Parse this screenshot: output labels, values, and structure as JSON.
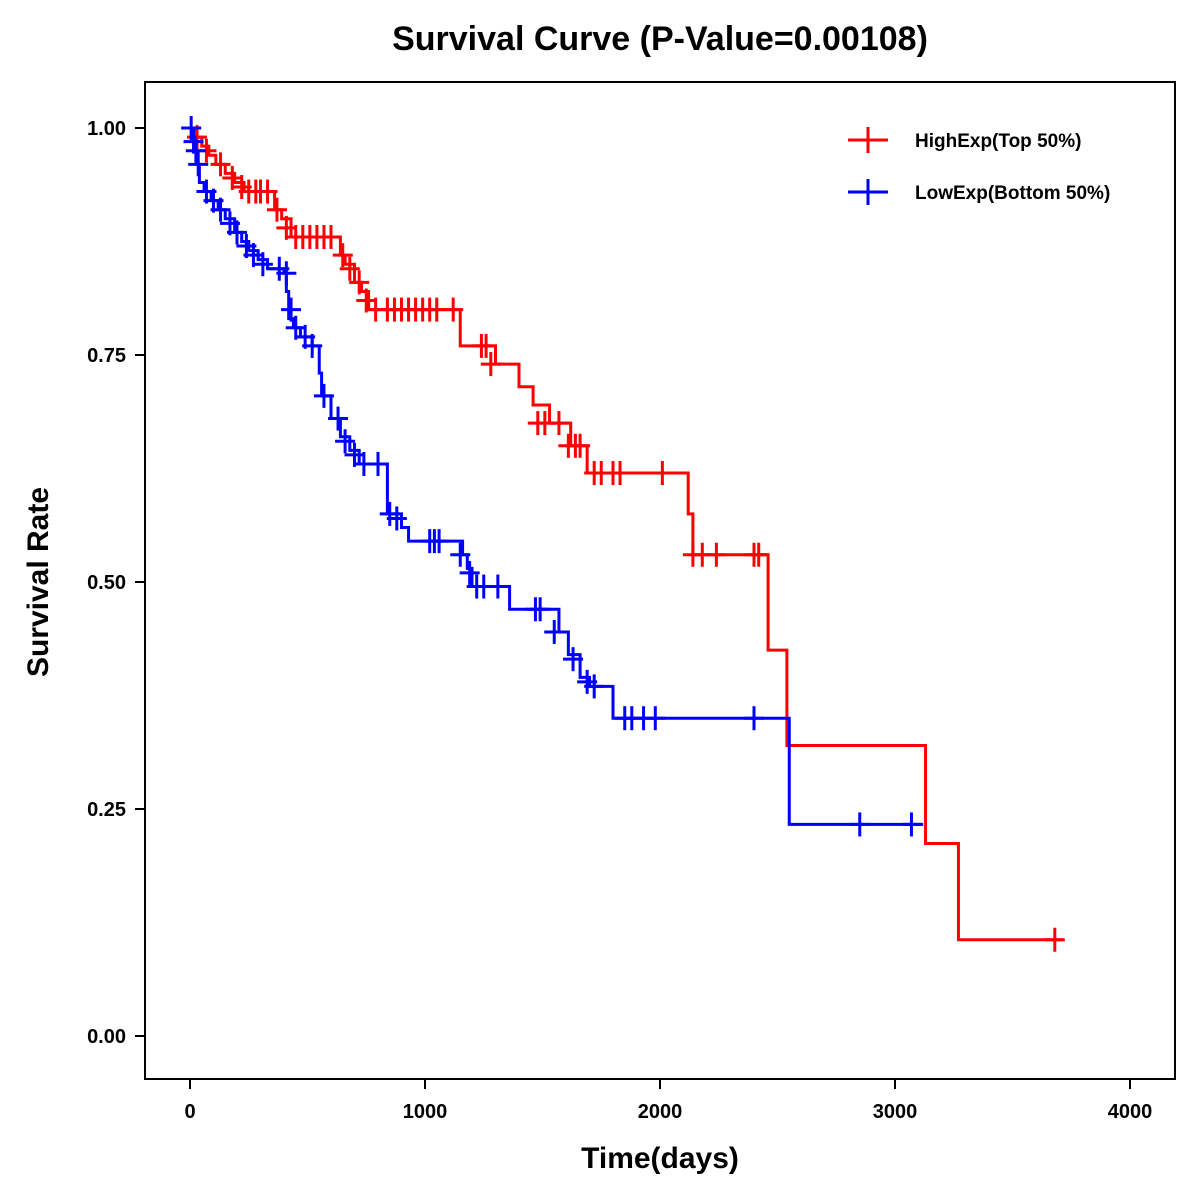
{
  "chart_data": {
    "type": "line",
    "title": "Survival Curve (P-Value=0.00108)",
    "xlabel": "Time(days)",
    "ylabel": "Survival Rate",
    "xlim": [
      -200,
      4200
    ],
    "ylim": [
      -0.05,
      1.05
    ],
    "xticks": [
      0,
      1000,
      2000,
      3000,
      4000
    ],
    "xtick_labels": [
      "0",
      "1000",
      "2000",
      "3000",
      "4000"
    ],
    "yticks": [
      0,
      0.25,
      0.5,
      0.75,
      1.0
    ],
    "ytick_labels": [
      "0.00",
      "0.25",
      "0.50",
      "0.75",
      "1.00"
    ],
    "legend_position": "top-right",
    "series": [
      {
        "name": "HighExp(Top 50%)",
        "color": "#ff0000",
        "steps": [
          [
            0,
            1.0
          ],
          [
            20,
            0.99
          ],
          [
            50,
            0.98
          ],
          [
            80,
            0.97
          ],
          [
            110,
            0.96
          ],
          [
            150,
            0.95
          ],
          [
            190,
            0.94
          ],
          [
            230,
            0.93
          ],
          [
            340,
            0.93
          ],
          [
            360,
            0.91
          ],
          [
            390,
            0.9
          ],
          [
            430,
            0.88
          ],
          [
            620,
            0.88
          ],
          [
            640,
            0.86
          ],
          [
            660,
            0.85
          ],
          [
            700,
            0.83
          ],
          [
            730,
            0.82
          ],
          [
            760,
            0.8
          ],
          [
            1140,
            0.8
          ],
          [
            1150,
            0.76
          ],
          [
            1290,
            0.76
          ],
          [
            1300,
            0.74
          ],
          [
            1380,
            0.74
          ],
          [
            1400,
            0.715
          ],
          [
            1440,
            0.715
          ],
          [
            1460,
            0.695
          ],
          [
            1520,
            0.695
          ],
          [
            1530,
            0.675
          ],
          [
            1600,
            0.675
          ],
          [
            1620,
            0.65
          ],
          [
            1680,
            0.65
          ],
          [
            1690,
            0.62
          ],
          [
            2110,
            0.62
          ],
          [
            2120,
            0.575
          ],
          [
            2140,
            0.53
          ],
          [
            2450,
            0.53
          ],
          [
            2460,
            0.425
          ],
          [
            2530,
            0.425
          ],
          [
            2540,
            0.32
          ],
          [
            3120,
            0.32
          ],
          [
            3130,
            0.212
          ],
          [
            3260,
            0.212
          ],
          [
            3270,
            0.106
          ],
          [
            3710,
            0.106
          ]
        ],
        "censors": [
          [
            30,
            0.99
          ],
          [
            70,
            0.975
          ],
          [
            130,
            0.96
          ],
          [
            180,
            0.945
          ],
          [
            220,
            0.935
          ],
          [
            250,
            0.93
          ],
          [
            280,
            0.93
          ],
          [
            300,
            0.93
          ],
          [
            330,
            0.93
          ],
          [
            370,
            0.91
          ],
          [
            410,
            0.89
          ],
          [
            450,
            0.88
          ],
          [
            480,
            0.88
          ],
          [
            510,
            0.88
          ],
          [
            540,
            0.88
          ],
          [
            570,
            0.88
          ],
          [
            600,
            0.88
          ],
          [
            650,
            0.86
          ],
          [
            680,
            0.845
          ],
          [
            720,
            0.83
          ],
          [
            750,
            0.81
          ],
          [
            790,
            0.8
          ],
          [
            840,
            0.8
          ],
          [
            870,
            0.8
          ],
          [
            900,
            0.8
          ],
          [
            930,
            0.8
          ],
          [
            960,
            0.8
          ],
          [
            990,
            0.8
          ],
          [
            1020,
            0.8
          ],
          [
            1050,
            0.8
          ],
          [
            1120,
            0.8
          ],
          [
            1240,
            0.76
          ],
          [
            1260,
            0.76
          ],
          [
            1280,
            0.74
          ],
          [
            1480,
            0.675
          ],
          [
            1510,
            0.675
          ],
          [
            1570,
            0.675
          ],
          [
            1610,
            0.65
          ],
          [
            1640,
            0.65
          ],
          [
            1660,
            0.65
          ],
          [
            1720,
            0.62
          ],
          [
            1750,
            0.62
          ],
          [
            1800,
            0.62
          ],
          [
            1830,
            0.62
          ],
          [
            2010,
            0.62
          ],
          [
            2140,
            0.53
          ],
          [
            2180,
            0.53
          ],
          [
            2240,
            0.53
          ],
          [
            2400,
            0.53
          ],
          [
            2420,
            0.53
          ],
          [
            3680,
            0.106
          ]
        ]
      },
      {
        "name": "LowExp(Bottom 50%)",
        "color": "#0000ff",
        "steps": [
          [
            0,
            1.0
          ],
          [
            10,
            0.99
          ],
          [
            20,
            0.975
          ],
          [
            30,
            0.96
          ],
          [
            40,
            0.94
          ],
          [
            60,
            0.93
          ],
          [
            90,
            0.92
          ],
          [
            120,
            0.91
          ],
          [
            150,
            0.9
          ],
          [
            190,
            0.885
          ],
          [
            220,
            0.875
          ],
          [
            250,
            0.865
          ],
          [
            290,
            0.855
          ],
          [
            330,
            0.845
          ],
          [
            400,
            0.84
          ],
          [
            410,
            0.82
          ],
          [
            420,
            0.79
          ],
          [
            440,
            0.78
          ],
          [
            470,
            0.77
          ],
          [
            520,
            0.76
          ],
          [
            550,
            0.73
          ],
          [
            560,
            0.705
          ],
          [
            600,
            0.68
          ],
          [
            640,
            0.66
          ],
          [
            680,
            0.645
          ],
          [
            720,
            0.63
          ],
          [
            830,
            0.63
          ],
          [
            840,
            0.575
          ],
          [
            900,
            0.56
          ],
          [
            930,
            0.545
          ],
          [
            1140,
            0.545
          ],
          [
            1160,
            0.53
          ],
          [
            1180,
            0.515
          ],
          [
            1200,
            0.495
          ],
          [
            1340,
            0.495
          ],
          [
            1360,
            0.47
          ],
          [
            1560,
            0.47
          ],
          [
            1570,
            0.445
          ],
          [
            1610,
            0.42
          ],
          [
            1660,
            0.395
          ],
          [
            1700,
            0.385
          ],
          [
            1790,
            0.385
          ],
          [
            1800,
            0.35
          ],
          [
            2540,
            0.35
          ],
          [
            2550,
            0.233
          ],
          [
            3120,
            0.233
          ]
        ],
        "censors": [
          [
            5,
            1.0
          ],
          [
            15,
            0.985
          ],
          [
            25,
            0.975
          ],
          [
            35,
            0.96
          ],
          [
            70,
            0.93
          ],
          [
            100,
            0.92
          ],
          [
            130,
            0.91
          ],
          [
            170,
            0.895
          ],
          [
            200,
            0.885
          ],
          [
            240,
            0.87
          ],
          [
            270,
            0.86
          ],
          [
            310,
            0.85
          ],
          [
            380,
            0.845
          ],
          [
            410,
            0.84
          ],
          [
            430,
            0.8
          ],
          [
            450,
            0.78
          ],
          [
            490,
            0.77
          ],
          [
            520,
            0.76
          ],
          [
            570,
            0.705
          ],
          [
            630,
            0.68
          ],
          [
            660,
            0.655
          ],
          [
            700,
            0.64
          ],
          [
            740,
            0.63
          ],
          [
            800,
            0.63
          ],
          [
            850,
            0.575
          ],
          [
            880,
            0.57
          ],
          [
            1020,
            0.545
          ],
          [
            1040,
            0.545
          ],
          [
            1060,
            0.545
          ],
          [
            1150,
            0.53
          ],
          [
            1190,
            0.51
          ],
          [
            1220,
            0.495
          ],
          [
            1250,
            0.495
          ],
          [
            1310,
            0.495
          ],
          [
            1470,
            0.47
          ],
          [
            1490,
            0.47
          ],
          [
            1550,
            0.445
          ],
          [
            1630,
            0.415
          ],
          [
            1690,
            0.39
          ],
          [
            1720,
            0.385
          ],
          [
            1850,
            0.35
          ],
          [
            1880,
            0.35
          ],
          [
            1930,
            0.35
          ],
          [
            1980,
            0.35
          ],
          [
            2400,
            0.35
          ],
          [
            2850,
            0.233
          ],
          [
            3070,
            0.233
          ]
        ]
      }
    ]
  }
}
